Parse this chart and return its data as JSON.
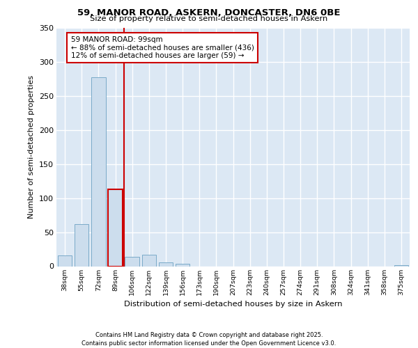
{
  "title1": "59, MANOR ROAD, ASKERN, DONCASTER, DN6 0BE",
  "title2": "Size of property relative to semi-detached houses in Askern",
  "xlabel": "Distribution of semi-detached houses by size in Askern",
  "ylabel": "Number of semi-detached properties",
  "footer1": "Contains HM Land Registry data © Crown copyright and database right 2025.",
  "footer2": "Contains public sector information licensed under the Open Government Licence v3.0.",
  "bin_labels": [
    "38sqm",
    "55sqm",
    "72sqm",
    "89sqm",
    "106sqm",
    "122sqm",
    "139sqm",
    "156sqm",
    "173sqm",
    "190sqm",
    "207sqm",
    "223sqm",
    "240sqm",
    "257sqm",
    "274sqm",
    "291sqm",
    "308sqm",
    "324sqm",
    "341sqm",
    "358sqm",
    "375sqm"
  ],
  "bar_values": [
    16,
    62,
    277,
    113,
    14,
    17,
    6,
    4,
    0,
    0,
    0,
    0,
    0,
    0,
    0,
    0,
    0,
    0,
    0,
    0,
    2
  ],
  "bar_color": "#ccdded",
  "bar_edge_color": "#7aaac8",
  "highlight_bar_index": 3,
  "highlight_bar_edge_color": "#cc0000",
  "red_line_x": 3.5,
  "annotation_line1": "59 MANOR ROAD: 99sqm",
  "annotation_line2": "← 88% of semi-detached houses are smaller (436)",
  "annotation_line3": "12% of semi-detached houses are larger (59) →",
  "ylim": [
    0,
    350
  ],
  "yticks": [
    0,
    50,
    100,
    150,
    200,
    250,
    300,
    350
  ],
  "plot_bg_color": "#dce8f4",
  "grid_color": "#ffffff"
}
